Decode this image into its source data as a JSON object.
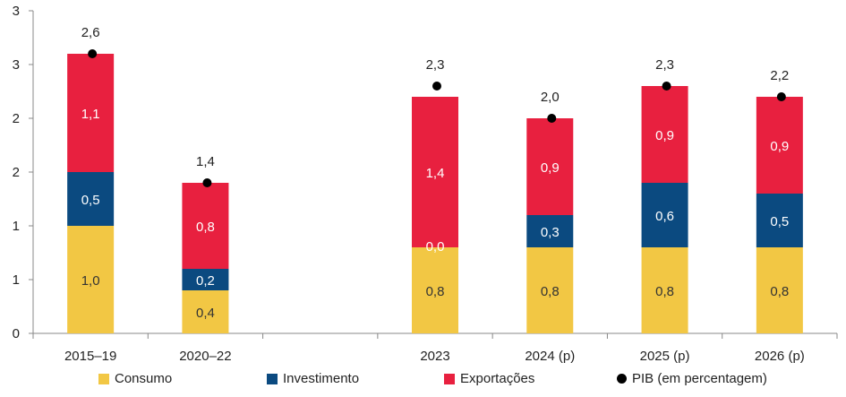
{
  "chart_data": {
    "type": "bar",
    "stacked": true,
    "categories": [
      "2015–19",
      "2020–22",
      "",
      "2023",
      "2024 (p)",
      "2025 (p)",
      "2026 (p)"
    ],
    "series": [
      {
        "name": "Consumo",
        "color": "#F2C744",
        "label_color": "#333333",
        "values": [
          1.0,
          0.4,
          null,
          0.8,
          0.8,
          0.8,
          0.8
        ]
      },
      {
        "name": "Investimento",
        "color": "#0B4A80",
        "label_color": "#ffffff",
        "values": [
          0.5,
          0.2,
          null,
          0.0,
          0.3,
          0.6,
          0.5
        ]
      },
      {
        "name": "Exportações",
        "color": "#E8203F",
        "label_color": "#ffffff",
        "values": [
          1.1,
          0.8,
          null,
          1.4,
          0.9,
          0.9,
          0.9
        ]
      }
    ],
    "segment_labels": [
      [
        "1,0",
        "0,4",
        "",
        "0,8",
        "0,8",
        "0,8",
        "0,8"
      ],
      [
        "0,5",
        "0,2",
        "",
        "0,0",
        "0,3",
        "0,6",
        "0,5"
      ],
      [
        "1,1",
        "0,8",
        "",
        "1,4",
        "0,9",
        "0,9",
        "0,9"
      ]
    ],
    "line_series": {
      "name": "PIB (em percentagem)",
      "marker": "dot",
      "color": "#000000",
      "values": [
        2.6,
        1.4,
        null,
        2.3,
        2.0,
        2.3,
        2.2
      ],
      "labels": [
        "2,6",
        "1,4",
        "",
        "2,3",
        "2,0",
        "2,3",
        "2,2"
      ]
    },
    "ylim": [
      0,
      3.0
    ],
    "yticks": [
      0,
      0.5,
      1.0,
      1.5,
      2.0,
      2.5,
      3.0
    ],
    "ytick_labels": [
      "0",
      "1",
      "1",
      "2",
      "2",
      "3",
      "3"
    ],
    "legend_position": "bottom",
    "grid": false
  }
}
